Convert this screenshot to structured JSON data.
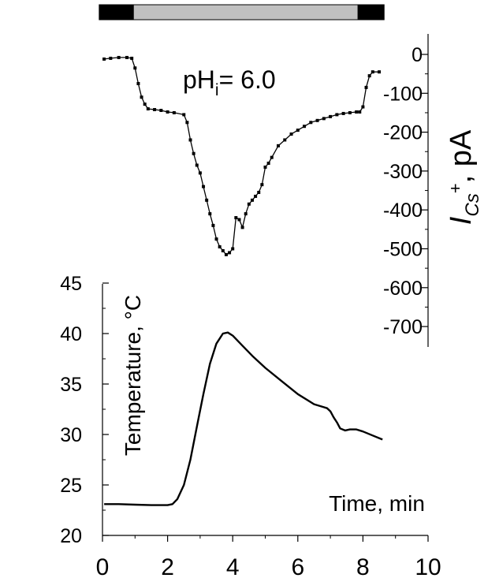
{
  "chart_data": [
    {
      "type": "line",
      "name": "current-panel",
      "annotation": "pH",
      "annotation_sub": "i",
      "annotation_rest": "= 6.0",
      "ylabel": "I",
      "ylabel_sub": "Cs",
      "ylabel_sup": "+",
      "ylabel_rest": ", pA",
      "ylim": [
        -730,
        60
      ],
      "yticks": [
        0,
        -100,
        -200,
        -300,
        -400,
        -500,
        -600,
        -700
      ],
      "ytick_labels": [
        "0",
        "-100",
        "-200",
        "-300",
        "-400",
        "-500",
        "-600",
        "-700"
      ],
      "xlim": [
        0,
        10
      ],
      "marker": "square",
      "x": [
        0.05,
        0.25,
        0.5,
        0.75,
        0.9,
        1.0,
        1.1,
        1.2,
        1.3,
        1.4,
        1.6,
        1.8,
        2.0,
        2.2,
        2.5,
        2.6,
        2.7,
        2.8,
        2.9,
        3.0,
        3.1,
        3.2,
        3.3,
        3.4,
        3.5,
        3.6,
        3.7,
        3.8,
        3.9,
        4.0,
        4.1,
        4.2,
        4.3,
        4.4,
        4.5,
        4.6,
        4.7,
        4.8,
        4.9,
        5.0,
        5.1,
        5.2,
        5.4,
        5.6,
        5.8,
        6.0,
        6.2,
        6.4,
        6.6,
        6.8,
        7.0,
        7.2,
        7.4,
        7.6,
        7.8,
        7.9,
        8.0,
        8.1,
        8.2,
        8.3,
        8.5
      ],
      "y": [
        -12,
        -10,
        -8,
        -8,
        -10,
        -35,
        -75,
        -110,
        -128,
        -140,
        -142,
        -144,
        -148,
        -150,
        -155,
        -175,
        -220,
        -255,
        -285,
        -305,
        -340,
        -375,
        -410,
        -440,
        -475,
        -495,
        -505,
        -515,
        -510,
        -500,
        -420,
        -425,
        -445,
        -410,
        -385,
        -375,
        -365,
        -355,
        -335,
        -290,
        -280,
        -265,
        -235,
        -220,
        -205,
        -195,
        -185,
        -175,
        -170,
        -165,
        -160,
        -155,
        -152,
        -150,
        -148,
        -148,
        -135,
        -85,
        -55,
        -45,
        -45
      ]
    },
    {
      "type": "line",
      "name": "temperature-panel",
      "ylabel": "Temperature, °C",
      "xlabel": "Time, min",
      "xlim": [
        0,
        10
      ],
      "ylim": [
        20,
        45
      ],
      "xticks": [
        0,
        2,
        4,
        6,
        8,
        10
      ],
      "xtick_labels": [
        "0",
        "2",
        "4",
        "6",
        "8",
        "10"
      ],
      "yticks": [
        20,
        25,
        30,
        35,
        40,
        45
      ],
      "ytick_labels": [
        "20",
        "25",
        "30",
        "35",
        "40",
        "45"
      ],
      "x": [
        0.05,
        0.5,
        1.0,
        1.5,
        2.0,
        2.15,
        2.3,
        2.5,
        2.7,
        2.9,
        3.1,
        3.3,
        3.5,
        3.7,
        3.85,
        4.0,
        4.3,
        4.6,
        5.0,
        5.5,
        6.0,
        6.5,
        6.8,
        6.9,
        7.0,
        7.1,
        7.2,
        7.3,
        7.45,
        7.6,
        7.8,
        8.0,
        8.3,
        8.6
      ],
      "y": [
        23.1,
        23.1,
        23.05,
        23.0,
        23.0,
        23.1,
        23.6,
        25.0,
        27.5,
        30.8,
        34.0,
        37.0,
        39.0,
        40.0,
        40.1,
        39.8,
        38.8,
        37.8,
        36.6,
        35.3,
        34.0,
        33.0,
        32.7,
        32.6,
        32.3,
        31.7,
        31.2,
        30.6,
        30.4,
        30.5,
        30.5,
        30.3,
        29.9,
        29.5
      ]
    }
  ],
  "stimulus_bar": {
    "segments": [
      {
        "from": -0.1,
        "to": 0.95,
        "color": "#000000"
      },
      {
        "from": 0.95,
        "to": 7.85,
        "color": "#c0c0c0"
      },
      {
        "from": 7.85,
        "to": 8.65,
        "color": "#000000"
      }
    ]
  }
}
